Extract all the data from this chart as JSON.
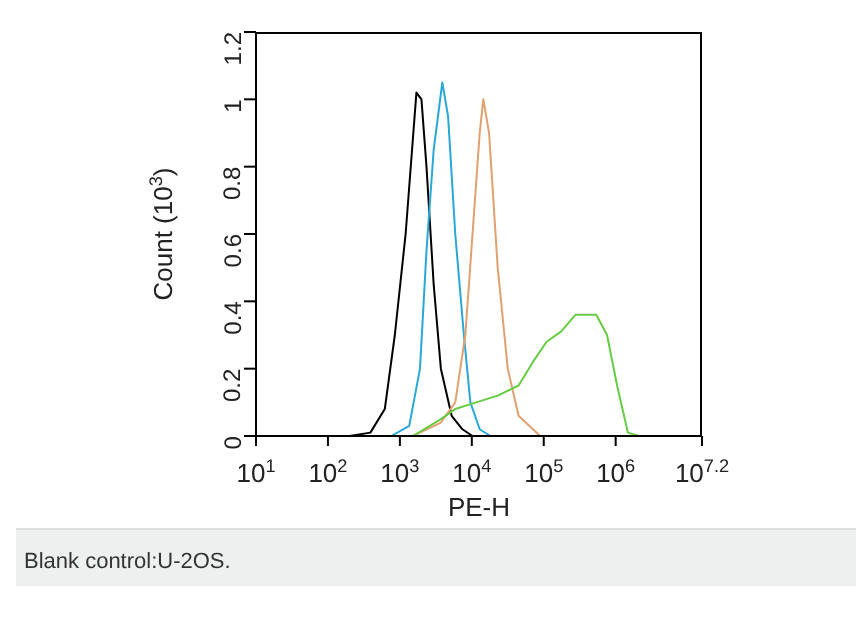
{
  "chart_data": {
    "type": "line",
    "xlabel": "PE-H",
    "ylabel": "Count (10$^{3}$)",
    "log": "x",
    "xlim": [
      10,
      15848932
    ],
    "xticks": [
      {
        "value": 10,
        "label": "10$^{1}$"
      },
      {
        "value": 100,
        "label": "10$^{2}$"
      },
      {
        "value": 1000,
        "label": "10$^{3}$"
      },
      {
        "value": 10000,
        "label": "10$^{4}$"
      },
      {
        "value": 100000,
        "label": "10$^{5}$"
      },
      {
        "value": 1000000,
        "label": "10$^{6}$"
      },
      {
        "value": 15848932,
        "label": "10$^{7.2}$"
      }
    ],
    "ylim": [
      0,
      1.2
    ],
    "yticks": [
      0,
      0.2,
      0.4,
      0.6,
      0.8,
      1,
      1.2
    ],
    "marker": "none",
    "line_style": "solid",
    "series": [
      {
        "color": "#000000",
        "x": [
          200,
          389,
          617,
          851,
          1202,
          1698,
          1995,
          2344,
          2951,
          3715,
          5248,
          7413,
          10233
        ],
        "values": [
          0,
          0.01,
          0.08,
          0.3,
          0.6,
          1.02,
          1,
          0.8,
          0.45,
          0.2,
          0.06,
          0.02,
          0
        ]
      },
      {
        "color": "#29a8d8",
        "x": [
          759,
          1349,
          1905,
          2344,
          2951,
          3890,
          4677,
          5888,
          7762,
          9550,
          12882,
          18197
        ],
        "values": [
          0,
          0.03,
          0.2,
          0.55,
          0.85,
          1.05,
          0.95,
          0.6,
          0.3,
          0.1,
          0.02,
          0
        ]
      },
      {
        "color": "#e0a070",
        "x": [
          1514,
          3715,
          5888,
          8128,
          10233,
          12882,
          14454,
          17378,
          22909,
          31623,
          44668,
          89125
        ],
        "values": [
          0,
          0.04,
          0.1,
          0.3,
          0.6,
          0.9,
          1,
          0.9,
          0.5,
          0.2,
          0.06,
          0
        ]
      },
      {
        "color": "#66cc44",
        "x": [
          1514,
          3715,
          5888,
          11482,
          22909,
          44668,
          70795,
          109648,
          173780,
          275423,
          537032,
          758578,
          1047129,
          1479108,
          2089296
        ],
        "values": [
          0,
          0.05,
          0.08,
          0.1,
          0.12,
          0.15,
          0.22,
          0.28,
          0.31,
          0.36,
          0.36,
          0.3,
          0.15,
          0.01,
          0
        ]
      }
    ],
    "annotations": [
      "Blank control:U-2OS."
    ]
  }
}
